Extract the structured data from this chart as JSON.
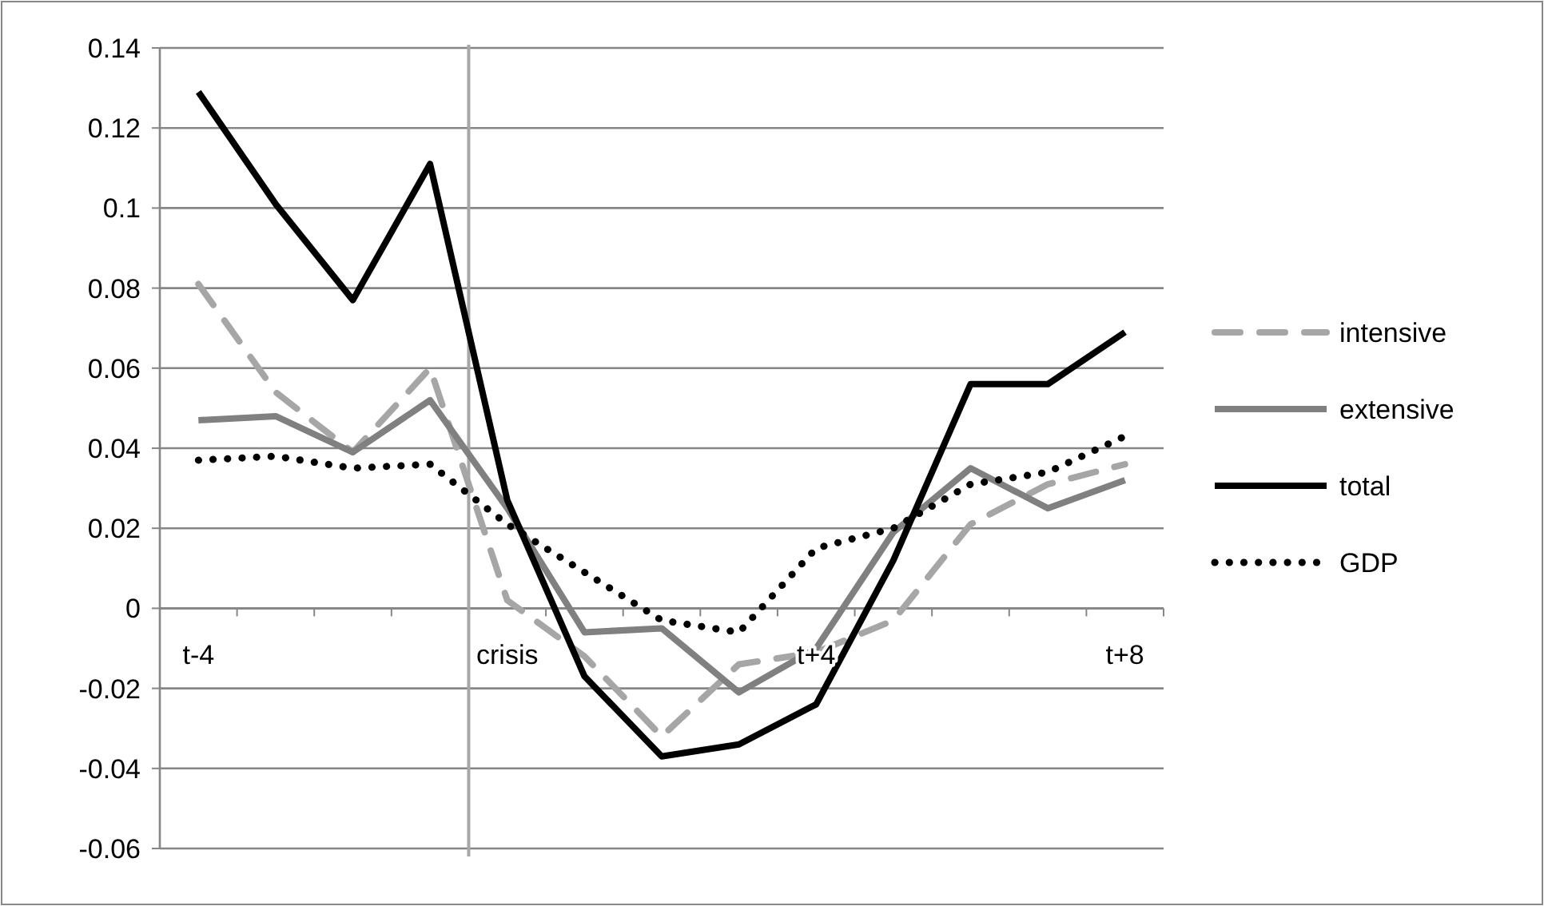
{
  "chart_data": {
    "type": "line",
    "categories": [
      "t-4",
      null,
      null,
      null,
      "crisis",
      null,
      null,
      null,
      "t+4",
      null,
      null,
      null,
      "t+8"
    ],
    "series": [
      {
        "name": "intensive",
        "color": "#a6a6a6",
        "line_style": "dashed",
        "values": [
          0.081,
          0.054,
          0.039,
          0.06,
          0.002,
          -0.012,
          -0.032,
          -0.014,
          -0.011,
          -0.003,
          0.021,
          0.031,
          0.036
        ]
      },
      {
        "name": "extensive",
        "color": "#808080",
        "line_style": "solid",
        "values": [
          0.047,
          0.048,
          0.039,
          0.052,
          0.025,
          -0.006,
          -0.005,
          -0.021,
          -0.01,
          0.019,
          0.035,
          0.025,
          0.032
        ]
      },
      {
        "name": "total",
        "color": "#000000",
        "line_style": "solid",
        "values": [
          0.129,
          0.101,
          0.077,
          0.111,
          0.027,
          -0.017,
          -0.037,
          -0.034,
          -0.024,
          0.012,
          0.056,
          0.056,
          0.069
        ]
      },
      {
        "name": "GDP",
        "color": "#000000",
        "line_style": "dotted",
        "values": [
          0.037,
          0.038,
          0.035,
          0.036,
          0.021,
          0.009,
          -0.003,
          -0.006,
          0.015,
          0.02,
          0.031,
          0.034,
          0.043
        ]
      }
    ],
    "ylim": [
      -0.06,
      0.14
    ],
    "yticks": [
      -0.06,
      -0.04,
      -0.02,
      0,
      0.02,
      0.04,
      0.06,
      0.08,
      0.1,
      0.12,
      0.14
    ],
    "ref_lines": [
      {
        "axis": "x",
        "value": "crisis",
        "color": "#a6a6a6"
      }
    ],
    "grid": "y",
    "legend": "right",
    "marker": "none"
  }
}
